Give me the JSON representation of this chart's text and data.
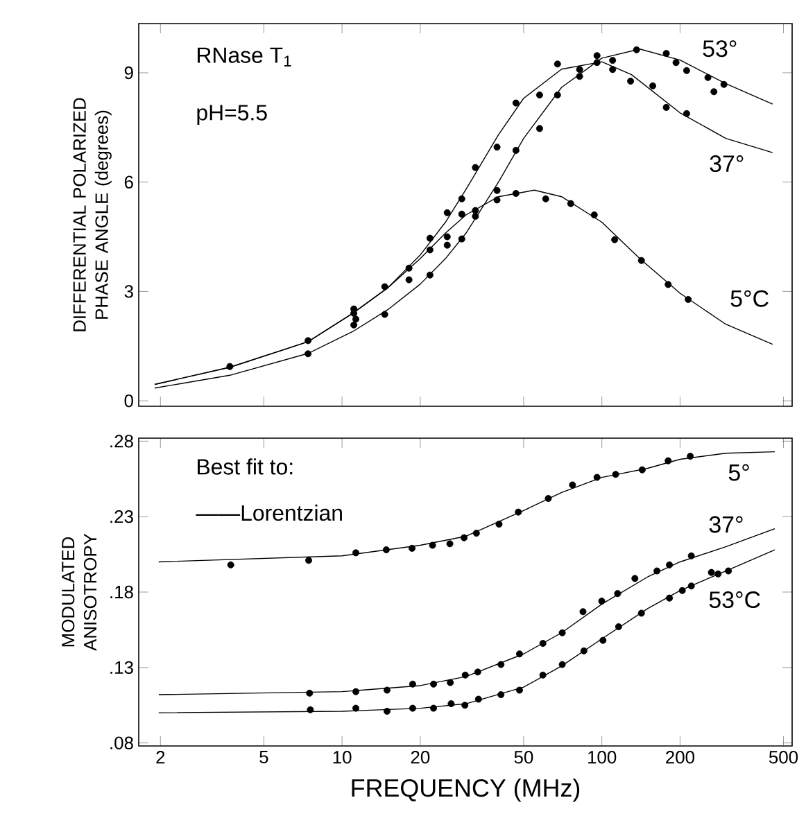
{
  "chart_data": [
    {
      "type": "scatter",
      "ylabel": "DIFFERENTIAL POLARIZED PHASE ANGLE (degrees)",
      "log": "x",
      "tick_labels": "y",
      "legend": "right",
      "xlim": [
        1.65,
        540
      ],
      "ylim": [
        -0.15,
        10.35
      ],
      "xticks": [
        2,
        5,
        10,
        20,
        50,
        100,
        200,
        500
      ],
      "yticks": [
        0,
        3,
        6,
        9
      ],
      "annotations": [
        "RNase T$_{1}$",
        "pH=5.5"
      ],
      "series": [
        {
          "marker": "circle",
          "color": "#000000",
          "x": [
            3.7,
            7.4,
            11.1,
            14.6,
            18.1,
            21.8,
            25.4,
            28.9,
            32.6,
            39.5,
            46.7,
            60.8,
            75.9,
            93.5,
            112,
            142,
            180,
            215
          ],
          "values": [
            0.94,
            1.65,
            2.4,
            3.13,
            3.32,
            4.14,
            4.5,
            5.12,
            5.22,
            5.77,
            5.69,
            5.54,
            5.41,
            5.1,
            4.42,
            3.85,
            3.19,
            2.78
          ]
        },
        {
          "marker": "circle",
          "color": "#000000",
          "x": [
            11.1,
            18.1,
            21.8,
            25.4,
            28.9,
            32.6,
            39.5,
            46.7,
            57.6,
            67.5,
            82.1,
            95.8,
            110,
            129,
            157,
            177,
            212
          ],
          "values": [
            2.52,
            3.64,
            4.46,
            5.16,
            5.54,
            6.4,
            6.96,
            8.17,
            8.39,
            9.24,
            9.09,
            9.28,
            9.09,
            8.77,
            8.64,
            8.05,
            7.88
          ]
        },
        {
          "marker": "circle",
          "color": "#000000",
          "x": [
            7.4,
            11.1,
            11.3,
            14.6,
            21.8,
            25.4,
            28.9,
            32.6,
            39.5,
            46.7,
            57.6,
            67.5,
            82.1,
            95.8,
            110,
            136,
            177,
            193,
            212,
            256,
            270,
            295
          ],
          "values": [
            1.29,
            2.08,
            2.24,
            2.37,
            3.45,
            4.27,
            4.44,
            5.06,
            5.51,
            6.87,
            7.47,
            8.39,
            8.9,
            9.47,
            9.34,
            9.63,
            9.53,
            9.28,
            9.06,
            8.87,
            8.48,
            8.68
          ]
        },
        {
          "type": "line",
          "name": "5°C",
          "color": "#000000",
          "x": [
            1.9,
            3.7,
            7.4,
            11,
            15,
            20,
            25,
            30,
            40,
            55,
            70,
            100,
            140,
            200,
            300,
            454
          ],
          "values": [
            0.45,
            0.92,
            1.62,
            2.4,
            3.1,
            3.9,
            4.6,
            5.1,
            5.6,
            5.78,
            5.6,
            4.9,
            3.9,
            2.95,
            2.1,
            1.55
          ]
        },
        {
          "type": "line",
          "name": "37°",
          "color": "#000000",
          "x": [
            1.9,
            3.7,
            7.4,
            11,
            15,
            20,
            25,
            30,
            40,
            50,
            70,
            100,
            130,
            200,
            300,
            454
          ],
          "values": [
            0.45,
            0.92,
            1.62,
            2.4,
            3.1,
            4.0,
            4.9,
            5.8,
            7.3,
            8.3,
            9.1,
            9.3,
            8.95,
            7.9,
            7.2,
            6.81
          ]
        },
        {
          "type": "line",
          "name": "53°",
          "color": "#000000",
          "x": [
            1.9,
            3.7,
            7.4,
            11,
            15,
            20,
            25,
            30,
            40,
            50,
            70,
            100,
            140,
            200,
            300,
            454
          ],
          "values": [
            0.35,
            0.7,
            1.3,
            1.9,
            2.5,
            3.2,
            3.9,
            4.6,
            6.0,
            7.2,
            8.6,
            9.4,
            9.65,
            9.35,
            8.7,
            8.14
          ]
        }
      ]
    },
    {
      "type": "scatter",
      "xlabel": "FREQUENCY (MHz)",
      "ylabel": "MODULATED ANISOTROPY",
      "log": "x",
      "legend": "right",
      "annotations": [
        "Best fit to:",
        "——Lorentzian"
      ],
      "xlim": [
        1.65,
        540
      ],
      "ylim": [
        0.078,
        0.282
      ],
      "xticks": [
        2,
        5,
        10,
        20,
        50,
        100,
        200,
        500
      ],
      "yticks": [
        {
          "value": 0.08,
          "label": ".08"
        },
        {
          "value": 0.13,
          "label": ".13"
        },
        {
          "value": 0.18,
          "label": ".18"
        },
        {
          "value": 0.23,
          "label": ".23"
        },
        {
          "value": 0.28,
          "label": ".28"
        }
      ],
      "series": [
        {
          "marker": "circle",
          "color": "#000000",
          "x": [
            3.73,
            7.44,
            11.3,
            14.8,
            18.6,
            22.3,
            26.0,
            29.5,
            32.9,
            40.2,
            47.7,
            62.2,
            77.1,
            95.8,
            113,
            143,
            180,
            219
          ],
          "values": [
            0.198,
            0.201,
            0.206,
            0.208,
            0.209,
            0.211,
            0.212,
            0.216,
            0.219,
            0.225,
            0.233,
            0.242,
            0.251,
            0.256,
            0.258,
            0.261,
            0.267,
            0.27
          ]
        },
        {
          "marker": "circle",
          "color": "#000000",
          "x": [
            7.5,
            11.3,
            14.9,
            18.7,
            22.5,
            26.1,
            29.8,
            33.3,
            40.9,
            48.2,
            59.3,
            70.4,
            84.6,
            99.9,
            115,
            134,
            163,
            182,
            221
          ],
          "values": [
            0.113,
            0.114,
            0.115,
            0.119,
            0.119,
            0.12,
            0.125,
            0.127,
            0.132,
            0.139,
            0.146,
            0.153,
            0.167,
            0.174,
            0.179,
            0.189,
            0.194,
            0.198,
            0.204
          ]
        },
        {
          "marker": "circle",
          "color": "#000000",
          "x": [
            7.55,
            11.3,
            14.9,
            18.7,
            22.5,
            26.3,
            29.7,
            33.5,
            40.9,
            48.2,
            59.3,
            70.4,
            85.3,
            101,
            116,
            142,
            182,
            204,
            221,
            264,
            280,
            307
          ],
          "values": [
            0.102,
            0.103,
            0.101,
            0.103,
            0.103,
            0.106,
            0.105,
            0.109,
            0.112,
            0.115,
            0.125,
            0.132,
            0.141,
            0.148,
            0.157,
            0.166,
            0.176,
            0.181,
            0.184,
            0.193,
            0.192,
            0.194
          ]
        },
        {
          "type": "line",
          "name": "5°",
          "color": "#000000",
          "x": [
            1.97,
            10,
            20,
            30,
            50,
            70,
            100,
            150,
            200,
            300,
            463
          ],
          "values": [
            0.2,
            0.204,
            0.211,
            0.217,
            0.234,
            0.246,
            0.256,
            0.262,
            0.268,
            0.272,
            0.273
          ]
        },
        {
          "type": "line",
          "name": "37°",
          "color": "#000000",
          "x": [
            1.97,
            10,
            20,
            30,
            50,
            70,
            100,
            150,
            200,
            300,
            463
          ],
          "values": [
            0.112,
            0.114,
            0.118,
            0.124,
            0.139,
            0.153,
            0.172,
            0.19,
            0.2,
            0.21,
            0.222
          ]
        },
        {
          "type": "line",
          "name": "53°C",
          "color": "#000000",
          "x": [
            1.97,
            10,
            20,
            30,
            50,
            70,
            100,
            150,
            200,
            300,
            463
          ],
          "values": [
            0.1,
            0.101,
            0.103,
            0.106,
            0.117,
            0.131,
            0.149,
            0.169,
            0.181,
            0.194,
            0.208
          ]
        }
      ]
    }
  ]
}
